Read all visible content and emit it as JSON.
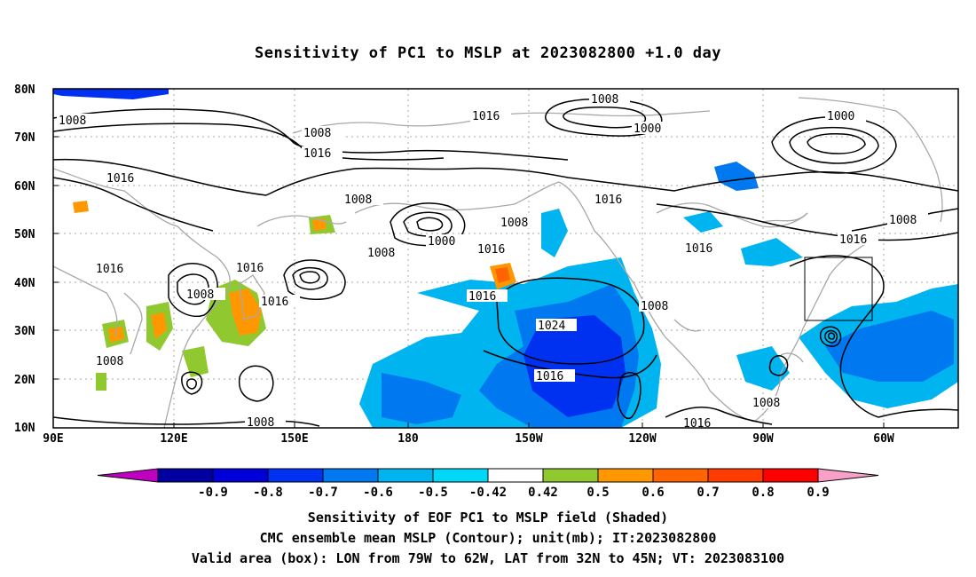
{
  "title": "Sensitivity of PC1 to MSLP at 2023082800 +1.0 day",
  "map": {
    "lat_labels": [
      "80N",
      "70N",
      "60N",
      "50N",
      "40N",
      "30N",
      "20N",
      "10N"
    ],
    "lon_labels": [
      "90E",
      "120E",
      "150E",
      "180",
      "150W",
      "120W",
      "90W",
      "60W"
    ],
    "lon_range": [
      "90E",
      "45W"
    ],
    "lat_range": [
      "10N",
      "80N"
    ],
    "contour_labels": [
      "1008",
      "1000",
      "1008",
      "1016",
      "1008",
      "1016",
      "1000",
      "1008",
      "1016",
      "1016",
      "1016",
      "1008",
      "1016",
      "1008",
      "1000",
      "1008",
      "1016",
      "1016",
      "1016",
      "1016",
      "1008",
      "1008",
      "1024",
      "1016",
      "1008",
      "1008",
      "1016",
      "1008",
      "1016",
      "1008",
      "1008"
    ],
    "valid_box": {
      "lon_from": "79W",
      "lon_to": "62W",
      "lat_from": "32N",
      "lat_to": "45N"
    }
  },
  "colorbar": {
    "ticks": [
      "-0.9",
      "-0.8",
      "-0.7",
      "-0.6",
      "-0.5",
      "-0.42",
      "0.42",
      "0.5",
      "0.6",
      "0.7",
      "0.8",
      "0.9"
    ],
    "colors": [
      "#c000c0",
      "#0000a0",
      "#0000d8",
      "#0030f0",
      "#0078f0",
      "#00b4f0",
      "#00d8f8",
      "#ffffff",
      "#90c830",
      "#ff9800",
      "#ff6400",
      "#ff3c00",
      "#ff0000",
      "#f8a0c8"
    ]
  },
  "captions": {
    "line1": "Sensitivity of EOF PC1 to MSLP field (Shaded)",
    "line2": "CMC ensemble mean MSLP (Contour); unit(mb); IT:2023082800",
    "line3": "Valid area (box): LON from 79W to 62W, LAT from 32N to 45N; VT: 2023083100"
  }
}
